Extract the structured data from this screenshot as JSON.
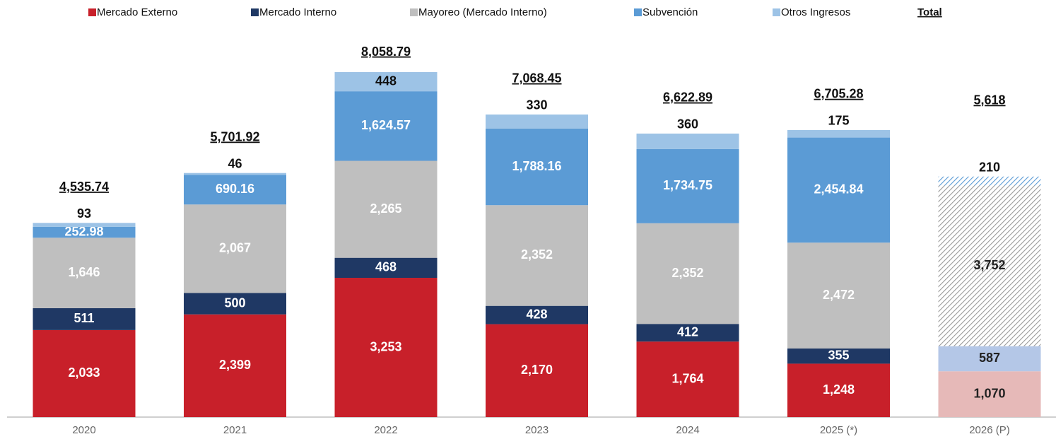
{
  "chart_data": {
    "type": "stacked_bar",
    "categories": [
      "2020",
      "2021",
      "2022",
      "2023",
      "2024",
      "2025 (*)",
      "2026 (P)"
    ],
    "series": [
      {
        "name": "Mercado Externo",
        "color": "#c8202a",
        "label_color": "#ffffff",
        "projected_color": "#e6b9b8",
        "projected_hatch": false,
        "values": [
          2033,
          2399,
          3253,
          2170,
          1764,
          1248,
          1070
        ],
        "value_labels": [
          "2,033",
          "2,399",
          "3,253",
          "2,170",
          "1,764",
          "1,248",
          "1,070"
        ]
      },
      {
        "name": "Mercado Interno",
        "color": "#1f3864",
        "label_color": "#ffffff",
        "projected_color": "#b4c7e7",
        "projected_hatch": false,
        "values": [
          511,
          500,
          468,
          428,
          412,
          355,
          587
        ],
        "value_labels": [
          "511",
          "500",
          "468",
          "428",
          "412",
          "355",
          "587"
        ]
      },
      {
        "name": "Mayoreo  (Mercado Interno)",
        "color": "#bfbfbf",
        "label_color": "#ffffff",
        "projected_color": "#9a9a9a",
        "projected_hatch": true,
        "values": [
          1646,
          2067,
          2265,
          2352,
          2352,
          2472,
          3752
        ],
        "value_labels": [
          "1,646",
          "2,067",
          "2,265",
          "2,352",
          "2,352",
          "2,472",
          "3,752"
        ]
      },
      {
        "name": "Subvención",
        "color": "#5b9bd5",
        "label_color": "#ffffff",
        "projected_color": "#5b9bd5",
        "projected_hatch": true,
        "values": [
          252.98,
          690.16,
          1624.57,
          1788.16,
          1734.75,
          2454.84,
          210
        ],
        "value_labels": [
          "252.98",
          "690.16",
          "1,624.57",
          "1,788.16",
          "1,734.75",
          "2,454.84",
          "210"
        ]
      },
      {
        "name": "Otros Ingresos",
        "color": "#9dc3e6",
        "label_color": "#111111",
        "projected_color": "#9dc3e6",
        "projected_hatch": false,
        "values": [
          93,
          46,
          448,
          330,
          360,
          175,
          null
        ],
        "value_labels": [
          "93",
          "46",
          "448",
          "330",
          "360",
          "175",
          null
        ]
      }
    ],
    "total_name": "Total",
    "totals": [
      4535.74,
      5701.92,
      8058.79,
      7068.45,
      6622.89,
      6705.28,
      5618
    ],
    "total_labels": [
      "4,535.74",
      "5,701.92",
      "8,058.79",
      "7,068.45",
      "6,622.89",
      "6,705.28",
      "5,618"
    ],
    "projected_index": 6,
    "ylim": [
      0,
      9000
    ]
  }
}
